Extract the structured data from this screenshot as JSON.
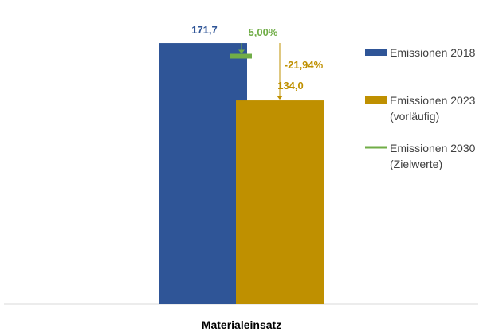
{
  "chart_data": {
    "type": "bar",
    "categories": [
      "Materialeinsatz"
    ],
    "ylim": [
      0,
      200
    ],
    "series": [
      {
        "name": "Emissionen 2018",
        "values": [
          171.7
        ],
        "label": "171,7",
        "color": "#2F5597"
      },
      {
        "name": "Emissionen 2023 (vorläufig)",
        "values": [
          134.0
        ],
        "label": "134,0",
        "color": "#BF9000"
      }
    ],
    "target": {
      "name": "Emissionen 2030 (Zielwerte)",
      "value": 163.1,
      "color": "#70AD47"
    },
    "annotations": [
      {
        "text": "5,00%",
        "color": "#70AD47"
      },
      {
        "text": "-21,94%",
        "color": "#BF9000"
      }
    ],
    "legend": {
      "position": "right",
      "items": [
        {
          "lines": [
            "Emissionen 2018"
          ],
          "marker": "box",
          "color": "#2F5597"
        },
        {
          "lines": [
            "Emissionen 2023",
            "(vorläufig)"
          ],
          "marker": "box",
          "color": "#BF9000"
        },
        {
          "lines": [
            "Emissionen 2030",
            "(Zielwerte)"
          ],
          "marker": "line",
          "color": "#70AD47"
        }
      ]
    },
    "grid": false
  }
}
